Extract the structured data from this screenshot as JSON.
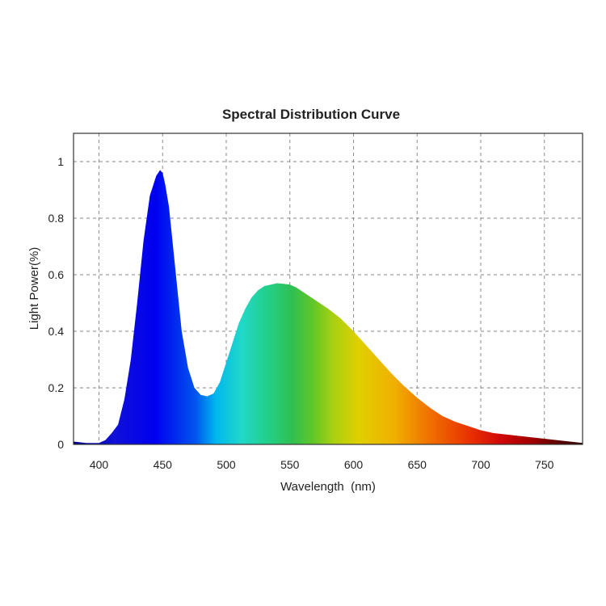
{
  "chart_data": {
    "type": "area",
    "title": "Spectral Distribution Curve",
    "xlabel": "Wavelength  (nm)",
    "ylabel": "Light Power(%)",
    "xlim": [
      380,
      780
    ],
    "ylim": [
      0,
      1.1
    ],
    "xticks": [
      "400",
      "450",
      "500",
      "550",
      "600",
      "650",
      "700",
      "750"
    ],
    "yticks": [
      "0",
      "0.2",
      "0.4",
      "0.6",
      "0.8",
      "1"
    ],
    "grid": true,
    "fill": "spectral-gradient",
    "series": [
      {
        "x": [
          380,
          390,
          400,
          405,
          410,
          415,
          420,
          425,
          430,
          435,
          440,
          445,
          448,
          450,
          452,
          455,
          460,
          465,
          470,
          475,
          480,
          485,
          490,
          495,
          500,
          505,
          510,
          515,
          520,
          525,
          530,
          535,
          540,
          545,
          550,
          555,
          560,
          565,
          570,
          575,
          580,
          590,
          600,
          610,
          620,
          630,
          640,
          650,
          660,
          670,
          680,
          690,
          700,
          710,
          720,
          730,
          740,
          750,
          760,
          770,
          780
        ],
        "values": [
          0.01,
          0.005,
          0.005,
          0.015,
          0.04,
          0.07,
          0.16,
          0.3,
          0.5,
          0.72,
          0.88,
          0.95,
          0.97,
          0.96,
          0.92,
          0.84,
          0.62,
          0.4,
          0.27,
          0.2,
          0.175,
          0.17,
          0.18,
          0.22,
          0.29,
          0.36,
          0.43,
          0.48,
          0.52,
          0.545,
          0.56,
          0.565,
          0.57,
          0.568,
          0.565,
          0.555,
          0.54,
          0.525,
          0.51,
          0.495,
          0.48,
          0.445,
          0.4,
          0.35,
          0.3,
          0.25,
          0.205,
          0.165,
          0.13,
          0.1,
          0.08,
          0.065,
          0.05,
          0.04,
          0.035,
          0.03,
          0.025,
          0.02,
          0.015,
          0.01,
          0.005
        ]
      }
    ]
  }
}
